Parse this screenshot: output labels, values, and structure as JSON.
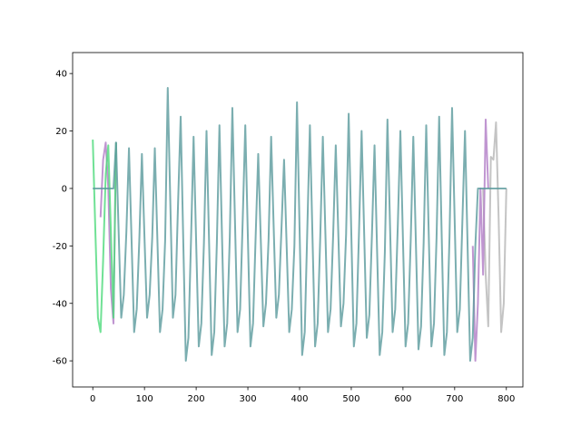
{
  "chart_data": {
    "type": "line",
    "xlim": [
      -39,
      832
    ],
    "ylim": [
      -69.1,
      47.3
    ],
    "xticks": [
      0,
      100,
      200,
      300,
      400,
      500,
      600,
      700,
      800
    ],
    "yticks": [
      -60,
      -40,
      -20,
      0,
      20,
      40
    ],
    "series": [
      {
        "color": "#b5b5b5",
        "x": [
          755,
          760,
          765,
          770,
          775,
          780,
          785,
          790,
          795,
          800
        ],
        "values": [
          0,
          -30,
          -48,
          11,
          10,
          23,
          -10,
          -50,
          -40,
          0
        ]
      },
      {
        "color": "#b07cc6",
        "x": [
          15,
          20,
          25,
          30,
          35,
          40,
          45
        ],
        "values": [
          -10,
          10,
          16,
          0,
          -35,
          -47,
          16
        ]
      },
      {
        "color": "#b07cc6",
        "x": [
          735,
          740,
          745,
          750,
          755,
          760,
          765
        ],
        "values": [
          -20,
          -60,
          -40,
          0,
          -30,
          24,
          0
        ]
      },
      {
        "color": "#4cd97b",
        "x": [
          0,
          5,
          10,
          15,
          20,
          25,
          30,
          35,
          40,
          45
        ],
        "values": [
          17,
          -15,
          -45,
          -50,
          -25,
          5,
          15,
          -15,
          -45,
          16
        ]
      },
      {
        "color": "#5a9a9c",
        "x": [
          0,
          5,
          10,
          15,
          20,
          25,
          30,
          35,
          40,
          45,
          50,
          55,
          60,
          65,
          70,
          75,
          80,
          85,
          90,
          95,
          100,
          105,
          110,
          115,
          120,
          125,
          130,
          135,
          140,
          145,
          150,
          155,
          160,
          165,
          170,
          175,
          180,
          185,
          190,
          195,
          200,
          205,
          210,
          215,
          220,
          225,
          230,
          235,
          240,
          245,
          250,
          255,
          260,
          265,
          270,
          275,
          280,
          285,
          290,
          295,
          300,
          305,
          310,
          315,
          320,
          325,
          330,
          335,
          340,
          345,
          350,
          355,
          360,
          365,
          370,
          375,
          380,
          385,
          390,
          395,
          400,
          405,
          410,
          415,
          420,
          425,
          430,
          435,
          440,
          445,
          450,
          455,
          460,
          465,
          470,
          475,
          480,
          485,
          490,
          495,
          500,
          505,
          510,
          515,
          520,
          525,
          530,
          535,
          540,
          545,
          550,
          555,
          560,
          565,
          570,
          575,
          580,
          585,
          590,
          595,
          600,
          605,
          610,
          615,
          620,
          625,
          630,
          635,
          640,
          645,
          650,
          655,
          660,
          665,
          670,
          675,
          680,
          685,
          690,
          695,
          700,
          705,
          710,
          715,
          720,
          725,
          730,
          735,
          740,
          745,
          750,
          755,
          760,
          765,
          770,
          775,
          780,
          785,
          790,
          795,
          800
        ],
        "values": [
          0,
          0,
          0,
          0,
          0,
          0,
          0,
          0,
          0,
          16,
          -15,
          -45,
          -37,
          -15,
          14,
          -18,
          -50,
          -42,
          -18,
          12,
          -17,
          -45,
          -37,
          -17,
          14,
          -18,
          -50,
          -42,
          -18,
          35,
          -5,
          -45,
          -37,
          -5,
          25,
          -18,
          -60,
          -52,
          -18,
          18,
          -19,
          -55,
          -47,
          -19,
          20,
          -19,
          -58,
          -50,
          -19,
          22,
          -17,
          -55,
          -47,
          -17,
          28,
          -11,
          -50,
          -42,
          -11,
          22,
          -17,
          -55,
          -47,
          -17,
          12,
          -18,
          -48,
          -40,
          -18,
          18,
          -14,
          -45,
          -37,
          -14,
          10,
          -20,
          -50,
          -42,
          -20,
          30,
          -14,
          -58,
          -50,
          -14,
          22,
          -17,
          -55,
          -47,
          -17,
          18,
          -16,
          -50,
          -42,
          -16,
          15,
          -16,
          -48,
          -40,
          -16,
          26,
          -15,
          -55,
          -47,
          -15,
          20,
          -16,
          -52,
          -44,
          -16,
          15,
          -22,
          -58,
          -50,
          -22,
          24,
          -13,
          -50,
          -42,
          -13,
          20,
          -18,
          -55,
          -47,
          -18,
          18,
          -19,
          -56,
          -48,
          -19,
          22,
          -17,
          -55,
          -47,
          -17,
          25,
          -17,
          -58,
          -50,
          -17,
          28,
          -11,
          -50,
          -42,
          -11,
          20,
          -20,
          -60,
          -52,
          -20,
          0,
          0,
          0,
          0,
          0,
          0,
          0,
          0,
          0,
          0,
          0,
          0
        ]
      }
    ]
  }
}
